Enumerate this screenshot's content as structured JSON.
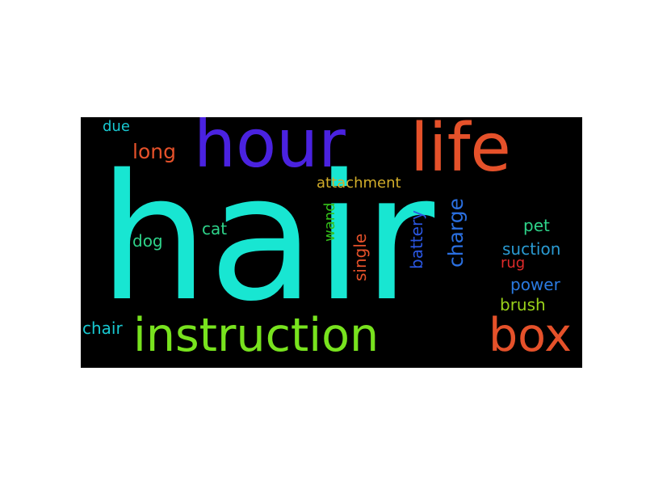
{
  "words": {
    "hair": {
      "text": "hair",
      "color": "#18e6d2"
    },
    "hour": {
      "text": "hour",
      "color": "#4a22e0"
    },
    "life": {
      "text": "life",
      "color": "#e5512a"
    },
    "instruction": {
      "text": "instruction",
      "color": "#78e31e"
    },
    "box": {
      "text": "box",
      "color": "#e5512a"
    },
    "long": {
      "text": "long",
      "color": "#e5512a"
    },
    "due": {
      "text": "due",
      "color": "#18c9d2"
    },
    "attachment": {
      "text": "attachment",
      "color": "#d2ad2a"
    },
    "charge": {
      "text": "charge",
      "color": "#2a6fe0"
    },
    "wand": {
      "text": "wand",
      "color": "#34c01a"
    },
    "cat": {
      "text": "cat",
      "color": "#2ed38a"
    },
    "dog": {
      "text": "dog",
      "color": "#2ed38a"
    },
    "single": {
      "text": "single",
      "color": "#e5512a"
    },
    "battery": {
      "text": "battery",
      "color": "#2a56e0"
    },
    "pet": {
      "text": "pet",
      "color": "#2ed38a"
    },
    "suction": {
      "text": "suction",
      "color": "#2a9ad2"
    },
    "rug": {
      "text": "rug",
      "color": "#e02a2a"
    },
    "power": {
      "text": "power",
      "color": "#2a7ae0"
    },
    "brush": {
      "text": "brush",
      "color": "#9ad21a"
    },
    "chair": {
      "text": "chair",
      "color": "#18c9d2"
    }
  }
}
